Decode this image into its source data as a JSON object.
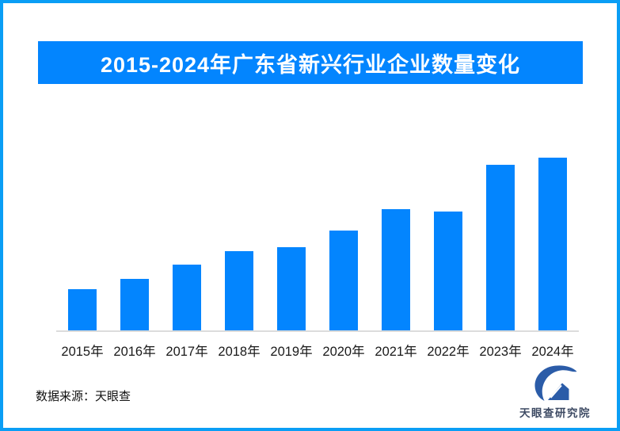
{
  "chart_data": {
    "type": "bar",
    "title": "2015-2024年广东省新兴行业企业数量变化",
    "categories": [
      "2015年",
      "2016年",
      "2017年",
      "2018年",
      "2019年",
      "2020年",
      "2021年",
      "2022年",
      "2023年",
      "2024年"
    ],
    "values": [
      24,
      30,
      38,
      46,
      48,
      58,
      70,
      69,
      96,
      100
    ],
    "values_note": "relative bar heights as % of 2024 bar; no numeric axis or data labels are shown in the image",
    "ylim": [
      0,
      112
    ],
    "xlabel": "",
    "ylabel": "",
    "gridlines": false,
    "legend": false,
    "y_axis_labels_shown": false,
    "data_labels_shown": false,
    "bar_color": "#0385fe",
    "axis_line_color": "#dcdcdc"
  },
  "footer": {
    "source_text": "数据来源：天眼查",
    "logo_text": "天眼查研究院"
  },
  "colors": {
    "frame_border": "#0a9ef5",
    "banner_bg": "#0385fe",
    "title_text": "#ffffff",
    "axis_label_text": "#1a1a1a",
    "logo_blue": "#2b5ca8",
    "logo_text_color": "#3d4a63"
  }
}
